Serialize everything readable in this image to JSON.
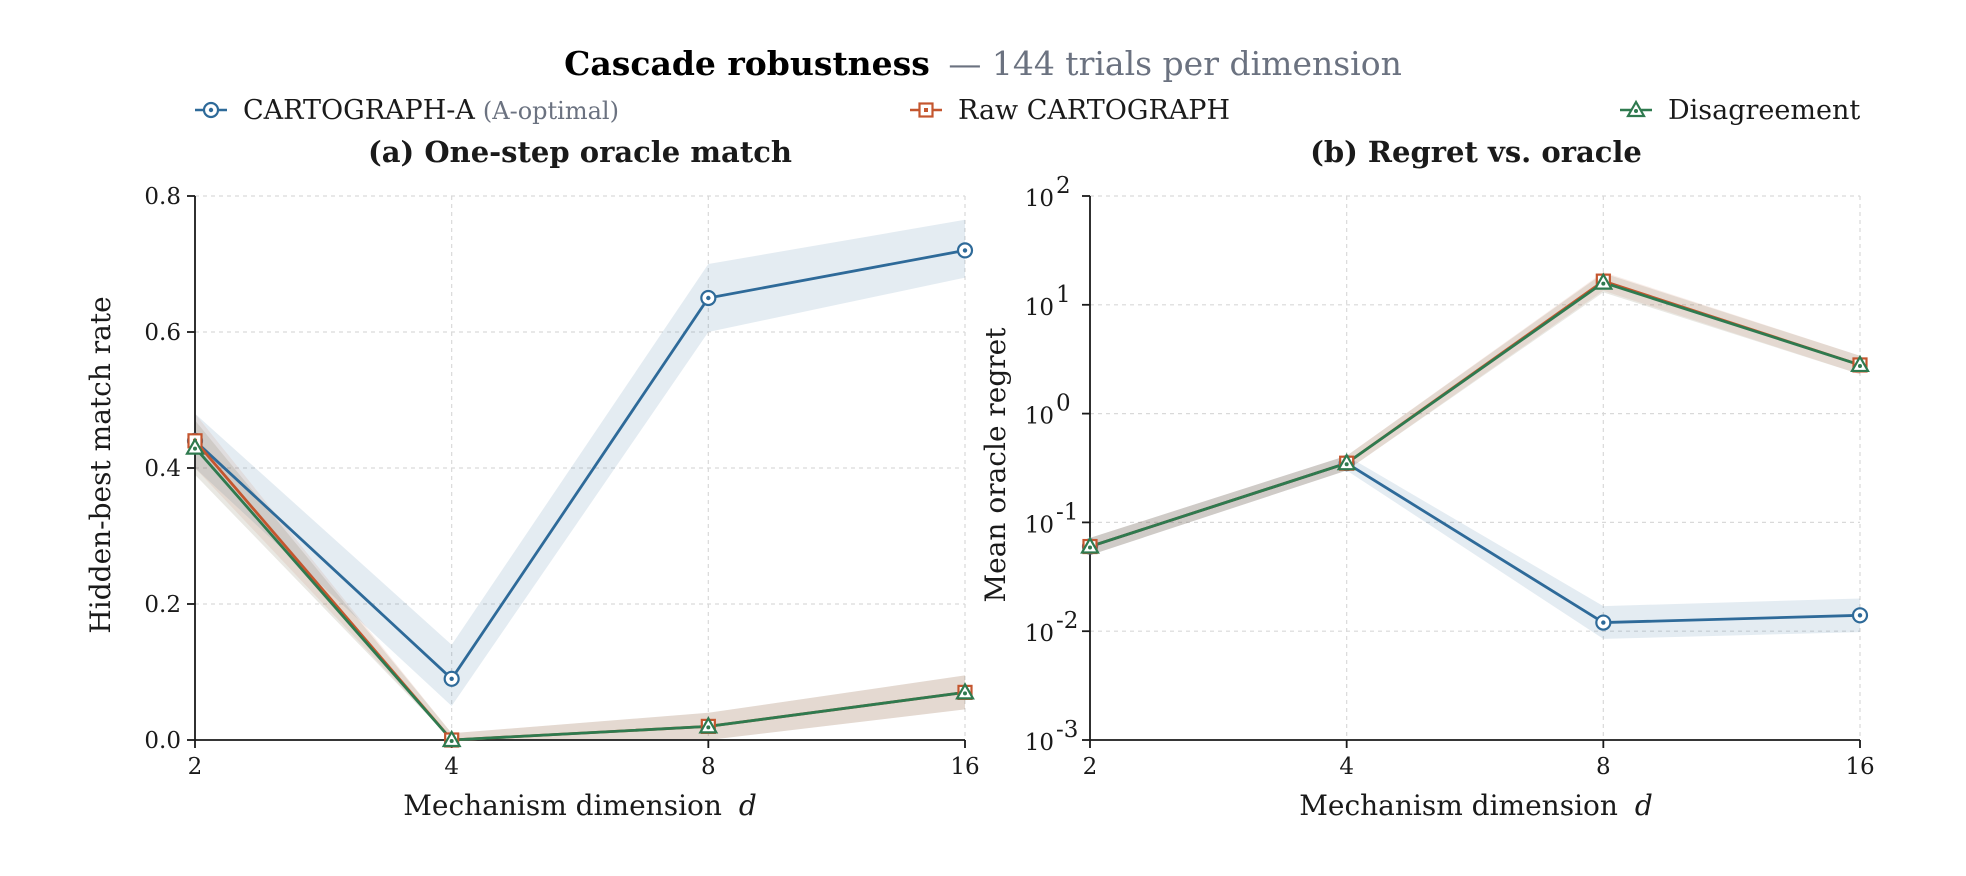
{
  "figure": {
    "title": "Cascade robustness",
    "subtitle": "— 144 trials per dimension"
  },
  "legend": [
    {
      "name": "CARTOGRAPH-A",
      "note": "(A-optimal)",
      "color": "#2e6a99",
      "marker": "circle"
    },
    {
      "name": "Raw CARTOGRAPH",
      "note": "",
      "color": "#c4562f",
      "marker": "square"
    },
    {
      "name": "Disagreement",
      "note": "",
      "color": "#2f7a4f",
      "marker": "triangle"
    }
  ],
  "chart_data": [
    {
      "type": "line",
      "title": "(a) One-step oracle match",
      "xlabel": "Mechanism dimension",
      "xlabel_var": "d",
      "ylabel": "Hidden-best match rate",
      "categories": [
        "2",
        "4",
        "8",
        "16"
      ],
      "yscale": "linear",
      "ylim": [
        0,
        0.8
      ],
      "yticks": [
        "0.0",
        "0.2",
        "0.4",
        "0.6",
        "0.8"
      ],
      "grid": true,
      "series": [
        {
          "name": "CARTOGRAPH-A",
          "values": [
            0.44,
            0.09,
            0.65,
            0.72
          ],
          "lower": [
            0.4,
            0.05,
            0.6,
            0.68
          ],
          "upper": [
            0.48,
            0.14,
            0.7,
            0.765
          ]
        },
        {
          "name": "Raw CARTOGRAPH",
          "values": [
            0.44,
            0.0,
            0.02,
            0.07
          ],
          "lower": [
            0.4,
            0.0,
            0.0,
            0.045
          ],
          "upper": [
            0.48,
            0.01,
            0.04,
            0.095
          ]
        },
        {
          "name": "Disagreement",
          "values": [
            0.43,
            0.0,
            0.02,
            0.07
          ],
          "lower": [
            0.39,
            0.0,
            0.0,
            0.045
          ],
          "upper": [
            0.47,
            0.01,
            0.04,
            0.095
          ]
        }
      ]
    },
    {
      "type": "line",
      "title": "(b) Regret vs. oracle",
      "xlabel": "Mechanism dimension",
      "xlabel_var": "d",
      "ylabel": "Mean oracle regret",
      "categories": [
        "2",
        "4",
        "8",
        "16"
      ],
      "yscale": "log",
      "ylim": [
        0.001,
        100
      ],
      "yticks": [
        {
          "base": "10",
          "exp": "-3"
        },
        {
          "base": "10",
          "exp": "-2"
        },
        {
          "base": "10",
          "exp": "-1"
        },
        {
          "base": "10",
          "exp": "0"
        },
        {
          "base": "10",
          "exp": "1"
        },
        {
          "base": "10",
          "exp": "2"
        }
      ],
      "grid": true,
      "series": [
        {
          "name": "CARTOGRAPH-A",
          "values": [
            0.06,
            0.35,
            0.012,
            0.014
          ],
          "lower": [
            0.05,
            0.3,
            0.0085,
            0.0098
          ],
          "upper": [
            0.072,
            0.41,
            0.017,
            0.02
          ]
        },
        {
          "name": "Raw CARTOGRAPH",
          "values": [
            0.06,
            0.35,
            16.5,
            2.8
          ],
          "lower": [
            0.05,
            0.3,
            13.5,
            2.3
          ],
          "upper": [
            0.072,
            0.41,
            20.0,
            3.4
          ]
        },
        {
          "name": "Disagreement",
          "values": [
            0.06,
            0.35,
            16.0,
            2.8
          ],
          "lower": [
            0.05,
            0.3,
            13.0,
            2.3
          ],
          "upper": [
            0.072,
            0.41,
            19.5,
            3.4
          ]
        }
      ]
    }
  ]
}
